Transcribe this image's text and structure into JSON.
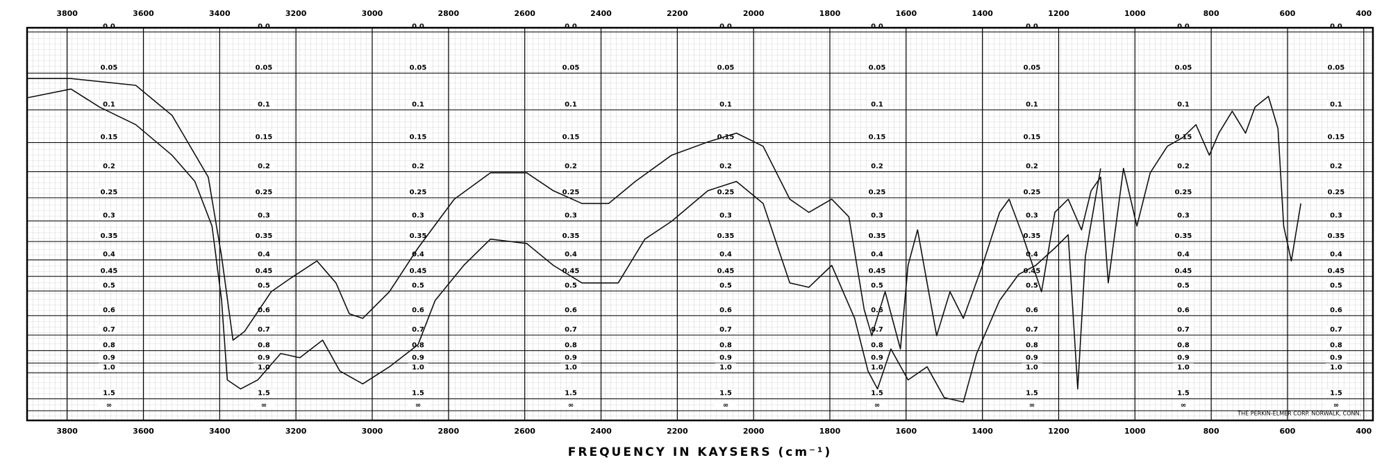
{
  "chart_data": {
    "type": "line",
    "xlabel": "FREQUENCY IN KAYSERS (cm⁻¹)",
    "note": "THE PERKIN-ELMER CORP. NORWALK, CONN.",
    "xlim": [
      3905,
      376
    ],
    "xticks": [
      3800,
      3600,
      3400,
      3200,
      3000,
      2800,
      2600,
      2400,
      2200,
      2000,
      1800,
      1600,
      1400,
      1200,
      1000,
      800,
      600,
      400
    ],
    "yscale": "absorbance",
    "ylim": [
      0,
      "Infinity"
    ],
    "yticks": [
      {
        "value": 0,
        "label": "0.0"
      },
      0.05,
      0.1,
      0.15,
      0.2,
      0.25,
      0.3,
      0.35,
      0.4,
      0.45,
      0.5,
      0.6,
      0.7,
      0.8,
      0.9,
      {
        "value": 1,
        "label": "1.0"
      },
      1.5,
      {
        "value": "Infinity",
        "label": "∞"
      }
    ],
    "grid": true,
    "series": [
      {
        "color": "#111111",
        "x": [
          3905,
          3790,
          3620,
          3525,
          3430,
          3395,
          3365,
          3335,
          3265,
          3215,
          3145,
          3095,
          3060,
          3025,
          2955,
          2880,
          2785,
          2690,
          2595,
          2525,
          2450,
          2380,
          2310,
          2215,
          2120,
          2045,
          1975,
          1905,
          1855,
          1795,
          1750,
          1710,
          1690,
          1655,
          1615,
          1595,
          1570,
          1545,
          1520,
          1485,
          1450,
          1400,
          1355,
          1330,
          1295,
          1245,
          1210,
          1175,
          1140,
          1115,
          1090,
          1070,
          1030,
          995,
          960,
          915,
          875,
          840,
          805,
          780,
          745,
          710,
          685,
          650,
          625,
          610,
          590,
          565
        ],
        "values": [
          0.057,
          0.057,
          0.066,
          0.108,
          0.21,
          0.39,
          0.73,
          0.68,
          0.503,
          0.457,
          0.403,
          0.472,
          0.592,
          0.613,
          0.503,
          0.367,
          0.253,
          0.202,
          0.202,
          0.236,
          0.262,
          0.262,
          0.218,
          0.171,
          0.149,
          0.135,
          0.156,
          0.253,
          0.281,
          0.253,
          0.291,
          0.573,
          0.703,
          0.503,
          0.788,
          0.416,
          0.321,
          0.472,
          0.703,
          0.503,
          0.613,
          0.416,
          0.281,
          0.253,
          0.333,
          0.503,
          0.281,
          0.253,
          0.321,
          0.236,
          0.21,
          0.472,
          0.194,
          0.312,
          0.202,
          0.156,
          0.142,
          0.122,
          0.171,
          0.135,
          0.102,
          0.135,
          0.096,
          0.081,
          0.128,
          0.312,
          0.403,
          0.262
        ]
      },
      {
        "color": "#111111",
        "x": [
          3905,
          3790,
          3715,
          3620,
          3525,
          3465,
          3420,
          3395,
          3380,
          3345,
          3300,
          3240,
          3190,
          3130,
          3085,
          3025,
          2955,
          2880,
          2835,
          2760,
          2690,
          2595,
          2525,
          2450,
          2355,
          2285,
          2215,
          2120,
          2045,
          1975,
          1905,
          1855,
          1795,
          1735,
          1700,
          1675,
          1640,
          1595,
          1545,
          1500,
          1450,
          1415,
          1355,
          1305,
          1260,
          1210,
          1175,
          1150,
          1130,
          1090
        ],
        "values": [
          0.083,
          0.071,
          0.096,
          0.122,
          0.171,
          0.218,
          0.312,
          0.536,
          1.09,
          1.24,
          1.09,
          0.821,
          0.854,
          0.73,
          0.979,
          1.15,
          0.936,
          0.759,
          0.536,
          0.416,
          0.344,
          0.355,
          0.416,
          0.472,
          0.472,
          0.344,
          0.301,
          0.236,
          0.218,
          0.262,
          0.472,
          0.487,
          0.416,
          0.613,
          0.979,
          1.24,
          0.788,
          1.09,
          0.936,
          1.46,
          1.64,
          0.821,
          0.536,
          0.444,
          0.416,
          0.367,
          0.333,
          1.24,
          0.39,
          0.194
        ]
      }
    ]
  }
}
